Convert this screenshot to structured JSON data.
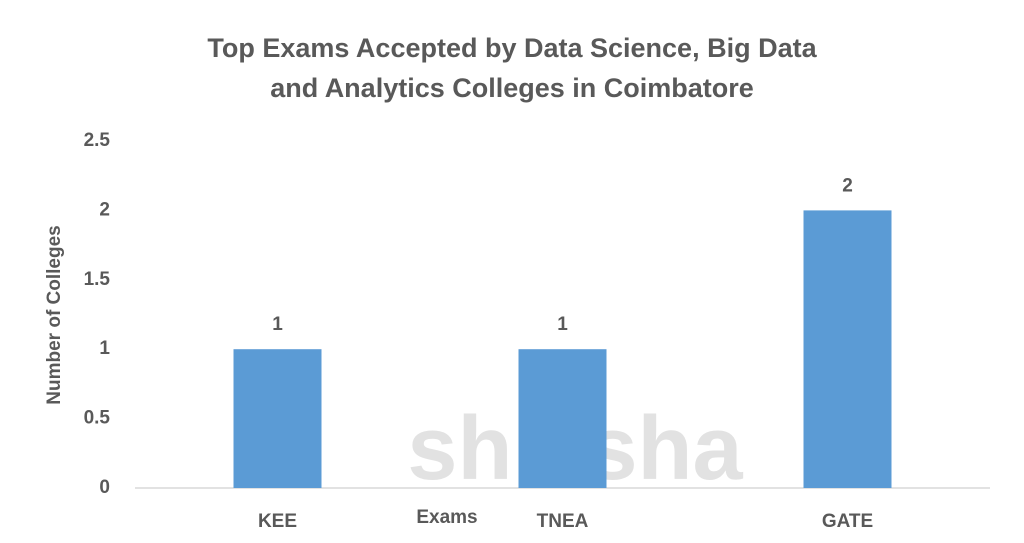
{
  "chart_data": {
    "type": "bar",
    "title": "Top Exams Accepted by Data Science, Big Data and Analytics Colleges in Coimbatore",
    "x_label": "Exams",
    "y_label": "Number of Colleges",
    "categories": [
      "KEE",
      "TNEA",
      "GATE"
    ],
    "values": [
      1,
      1,
      2
    ],
    "color": "#5b9bd5",
    "ylim": [
      0,
      2.5
    ],
    "yticks": [
      0,
      0.5,
      1,
      1.5,
      2,
      2.5
    ],
    "grid": false,
    "watermark": "shiksha"
  }
}
